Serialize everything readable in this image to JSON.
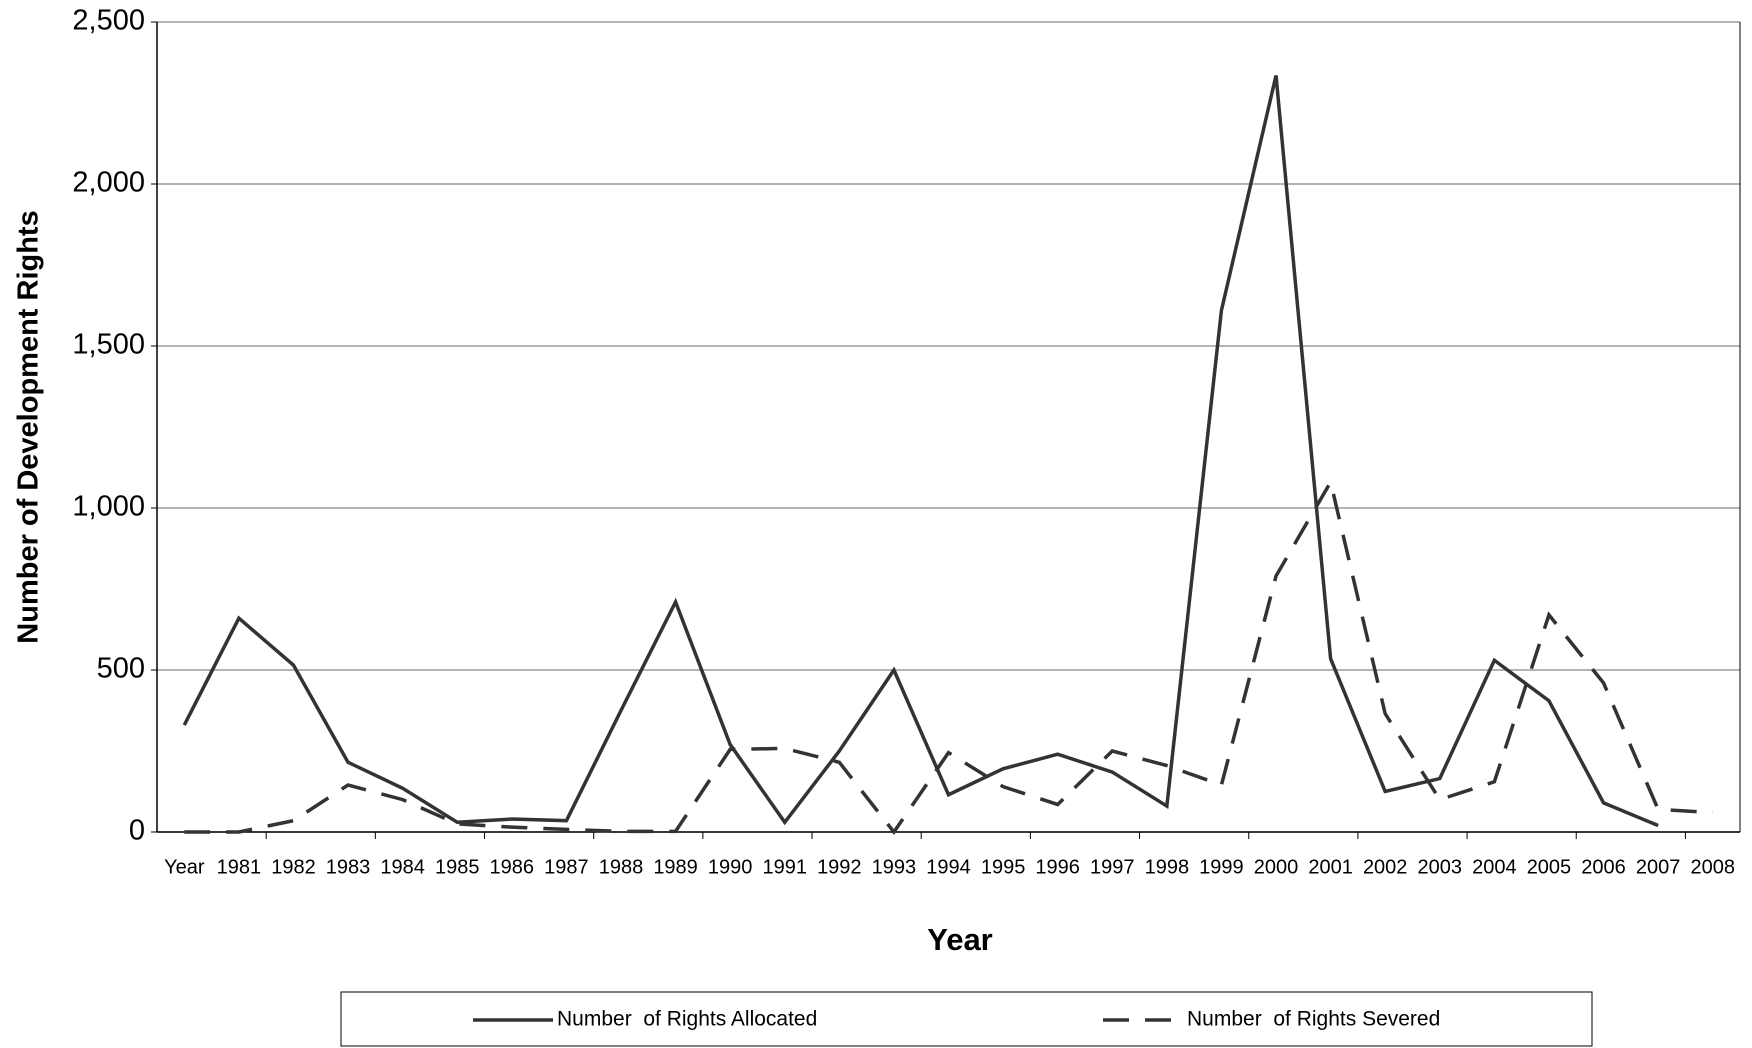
{
  "chart_data": {
    "type": "line",
    "x_label": "Year",
    "y_label": "Number of Development Rights",
    "categories": [
      "Year",
      "1981",
      "1982",
      "1983",
      "1984",
      "1985",
      "1986",
      "1987",
      "1988",
      "1989",
      "1990",
      "1991",
      "1992",
      "1993",
      "1994",
      "1995",
      "1996",
      "1997",
      "1998",
      "1999",
      "2000",
      "2001",
      "2002",
      "2003",
      "2004",
      "2005",
      "2006",
      "2007",
      "2008"
    ],
    "series": [
      {
        "name": "Number  of Rights Allocated",
        "color": "#333333",
        "line_style": "solid",
        "values": [
          330,
          660,
          515,
          215,
          135,
          30,
          40,
          35,
          375,
          710,
          270,
          30,
          250,
          500,
          115,
          195,
          240,
          185,
          80,
          1610,
          2335,
          535,
          125,
          165,
          530,
          405,
          90,
          20,
          null
        ]
      },
      {
        "name": "Number  of Rights Severed",
        "color": "#333333",
        "line_style": "dashed",
        "values": [
          0,
          0,
          35,
          145,
          100,
          25,
          15,
          8,
          2,
          2,
          255,
          258,
          215,
          0,
          245,
          140,
          85,
          250,
          205,
          145,
          790,
          1080,
          365,
          100,
          155,
          670,
          460,
          70,
          60
        ]
      }
    ],
    "ylim": [
      0,
      2500
    ],
    "yticks": [
      0,
      500,
      {
        "value": 1000,
        "label": "1,000"
      },
      {
        "value": 1500,
        "label": "1,500"
      },
      {
        "value": 2000,
        "label": "2,000"
      },
      {
        "value": 2500,
        "label": "2,500"
      }
    ],
    "grid": true,
    "legend": "bottom"
  }
}
